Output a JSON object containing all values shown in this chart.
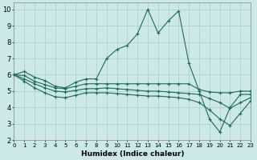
{
  "xlabel": "Humidex (Indice chaleur)",
  "bg_color": "#cce8e8",
  "grid_color": "#b0d0d0",
  "line_color": "#1a6b5a",
  "xlim": [
    0,
    23
  ],
  "ylim": [
    2,
    10.4
  ],
  "xticks": [
    0,
    1,
    2,
    3,
    4,
    5,
    6,
    7,
    8,
    9,
    10,
    11,
    12,
    13,
    14,
    15,
    16,
    17,
    18,
    19,
    20,
    21,
    22,
    23
  ],
  "yticks": [
    2,
    3,
    4,
    5,
    6,
    7,
    8,
    9,
    10
  ],
  "line1_x": [
    0,
    1,
    2,
    3,
    4,
    5,
    6,
    7,
    8,
    9,
    10,
    11,
    12,
    13,
    14,
    15,
    16,
    17,
    18,
    19,
    20,
    21,
    22,
    23
  ],
  "line1_y": [
    6.0,
    6.2,
    5.85,
    5.65,
    5.3,
    5.2,
    5.55,
    5.75,
    5.75,
    7.0,
    7.55,
    7.8,
    8.5,
    10.0,
    8.55,
    9.3,
    9.9,
    6.7,
    5.0,
    3.3,
    2.5,
    4.0,
    4.8,
    4.8
  ],
  "line2_x": [
    0,
    1,
    2,
    3,
    4,
    5,
    6,
    7,
    8,
    9,
    10,
    11,
    12,
    13,
    14,
    15,
    16,
    17,
    18,
    19,
    20,
    21,
    22,
    23
  ],
  "line2_y": [
    6.0,
    5.95,
    5.6,
    5.4,
    5.2,
    5.15,
    5.3,
    5.45,
    5.45,
    5.45,
    5.45,
    5.45,
    5.45,
    5.45,
    5.45,
    5.45,
    5.45,
    5.45,
    5.1,
    4.95,
    4.9,
    4.9,
    5.0,
    5.0
  ],
  "line3_x": [
    0,
    1,
    2,
    3,
    4,
    5,
    6,
    7,
    8,
    9,
    10,
    11,
    12,
    13,
    14,
    15,
    16,
    17,
    18,
    19,
    20,
    21,
    22,
    23
  ],
  "line3_y": [
    6.0,
    5.75,
    5.45,
    5.2,
    5.0,
    4.95,
    5.05,
    5.15,
    5.15,
    5.2,
    5.15,
    5.1,
    5.05,
    5.0,
    5.0,
    4.95,
    4.9,
    4.85,
    4.8,
    4.55,
    4.3,
    3.95,
    4.3,
    4.6
  ],
  "line4_x": [
    0,
    1,
    2,
    3,
    4,
    5,
    6,
    7,
    8,
    9,
    10,
    11,
    12,
    13,
    14,
    15,
    16,
    17,
    18,
    19,
    20,
    21,
    22,
    23
  ],
  "line4_y": [
    6.0,
    5.6,
    5.2,
    4.9,
    4.65,
    4.6,
    4.75,
    4.9,
    4.9,
    4.9,
    4.85,
    4.8,
    4.75,
    4.7,
    4.7,
    4.65,
    4.6,
    4.5,
    4.3,
    3.85,
    3.3,
    2.9,
    3.65,
    4.4
  ]
}
